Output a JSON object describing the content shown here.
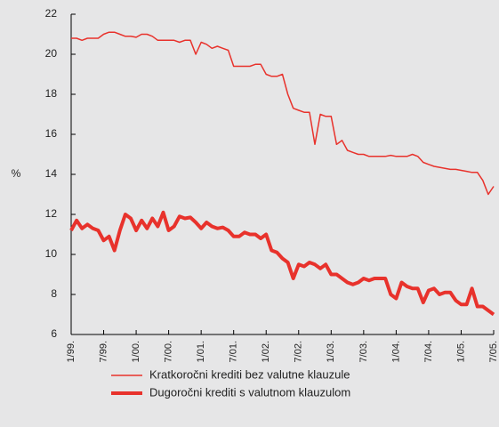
{
  "chart_data": {
    "type": "line",
    "categories": [
      "1/99.",
      null,
      null,
      null,
      null,
      null,
      "7/99.",
      null,
      null,
      null,
      null,
      null,
      "1/00.",
      null,
      null,
      null,
      null,
      null,
      "7/00.",
      null,
      null,
      null,
      null,
      null,
      "1/01.",
      null,
      null,
      null,
      null,
      null,
      "7/01.",
      null,
      null,
      null,
      null,
      null,
      "1/02.",
      null,
      null,
      null,
      null,
      null,
      "7/02.",
      null,
      null,
      null,
      null,
      null,
      "1/03.",
      null,
      null,
      null,
      null,
      null,
      "7/03.",
      null,
      null,
      null,
      null,
      null,
      "1/04.",
      null,
      null,
      null,
      null,
      null,
      "7/04.",
      null,
      null,
      null,
      null,
      null,
      "1/05.",
      null,
      null,
      null,
      null,
      null,
      "7/05."
    ],
    "series": [
      {
        "name": "Kratkoročni krediti bez valutne klauzule",
        "color": "#e8322c",
        "values": [
          20.8,
          20.8,
          20.7,
          20.8,
          20.8,
          20.8,
          21.0,
          21.1,
          21.1,
          21.0,
          20.9,
          20.9,
          20.85,
          21.0,
          21.0,
          20.9,
          20.7,
          20.7,
          20.7,
          20.7,
          20.6,
          20.7,
          20.7,
          20.0,
          20.6,
          20.5,
          20.3,
          20.4,
          20.3,
          20.2,
          19.4,
          19.4,
          19.4,
          19.4,
          19.5,
          19.5,
          19.0,
          18.9,
          18.9,
          19.0,
          18.0,
          17.3,
          17.2,
          17.1,
          17.1,
          15.5,
          17.0,
          16.9,
          16.9,
          15.5,
          15.7,
          15.2,
          15.1,
          15.0,
          15.0,
          14.9,
          14.9,
          14.9,
          14.9,
          14.95,
          14.9,
          14.9,
          14.9,
          15.0,
          14.9,
          14.6,
          14.5,
          14.4,
          14.35,
          14.3,
          14.25,
          14.25,
          14.2,
          14.15,
          14.1,
          14.1,
          13.7,
          13.0,
          13.4
        ]
      },
      {
        "name": "Dugoročni krediti s valutnom klauzulom",
        "color": "#e8322c",
        "values": [
          11.2,
          11.7,
          11.3,
          11.5,
          11.3,
          11.2,
          10.7,
          10.9,
          10.2,
          11.2,
          12.0,
          11.8,
          11.2,
          11.7,
          11.3,
          11.8,
          11.4,
          12.1,
          11.2,
          11.4,
          11.9,
          11.8,
          11.85,
          11.6,
          11.3,
          11.6,
          11.4,
          11.3,
          11.35,
          11.2,
          10.9,
          10.9,
          11.1,
          11.0,
          11.0,
          10.8,
          11.0,
          10.2,
          10.1,
          9.8,
          9.6,
          8.8,
          9.5,
          9.4,
          9.6,
          9.5,
          9.3,
          9.5,
          9.0,
          9.0,
          8.8,
          8.6,
          8.5,
          8.6,
          8.8,
          8.7,
          8.8,
          8.8,
          8.8,
          8.0,
          7.8,
          8.6,
          8.4,
          8.3,
          8.3,
          7.6,
          8.2,
          8.3,
          8.0,
          8.1,
          8.1,
          7.7,
          7.5,
          7.5,
          8.3,
          7.4,
          7.4,
          7.2,
          7.0
        ]
      }
    ],
    "ylabel": "%",
    "ylim": [
      6,
      22
    ],
    "yticks": [
      6,
      8,
      10,
      12,
      14,
      16,
      18,
      20,
      22
    ]
  }
}
